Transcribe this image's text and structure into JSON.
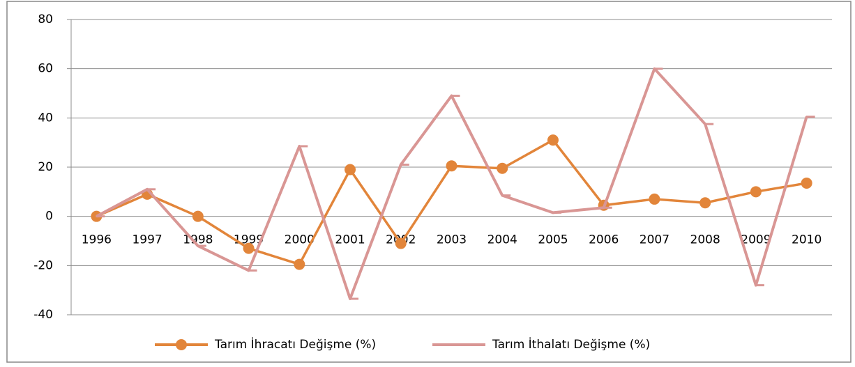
{
  "chart_data": {
    "type": "line",
    "categories": [
      "1996",
      "1997",
      "1998",
      "1999",
      "2000",
      "2001",
      "2002",
      "2003",
      "2004",
      "2005",
      "2006",
      "2007",
      "2008",
      "2009",
      "2010"
    ],
    "series": [
      {
        "name": "Tarım İhracatı Değişme (%)",
        "color": "#e2853a",
        "marker": "circle",
        "values": [
          0,
          9,
          0,
          -13,
          -19.5,
          19,
          -11,
          20.5,
          19.5,
          31,
          4.5,
          7,
          5.5,
          10,
          13.5
        ]
      },
      {
        "name": "Tarım İthalatı Değişme (%)",
        "color": "#d99694",
        "marker": "dash",
        "values": [
          0,
          11,
          -12,
          -22,
          28.5,
          -33.5,
          21,
          49,
          8.5,
          1.5,
          3.5,
          60,
          37.5,
          -28,
          40.5
        ]
      }
    ],
    "ylim": [
      -40,
      80
    ],
    "yticks": [
      -40,
      -20,
      0,
      20,
      40,
      60,
      80
    ],
    "grid": true,
    "legend": "bottom"
  }
}
